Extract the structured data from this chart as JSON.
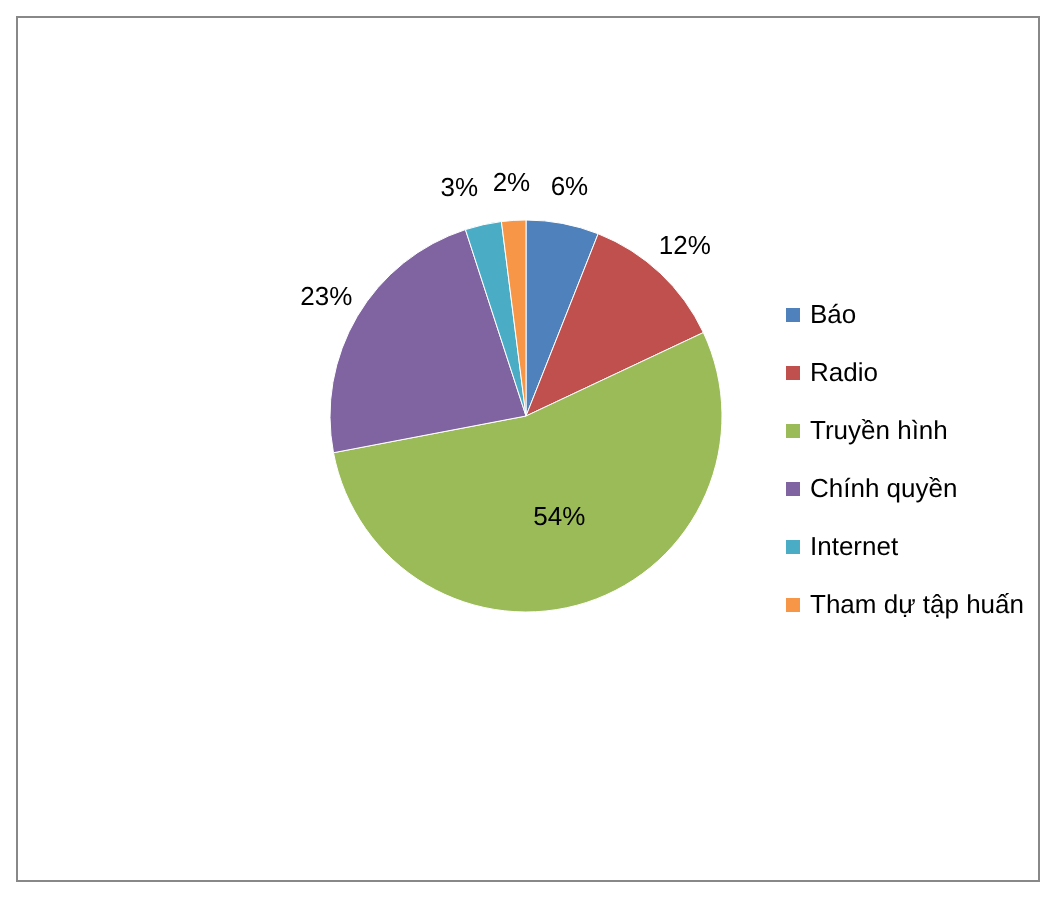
{
  "chart_data": {
    "type": "pie",
    "categories": [
      "Báo",
      "Radio",
      "Truyền hình",
      "Chính quyền",
      "Internet",
      "Tham dự tập huấn"
    ],
    "values": [
      6,
      12,
      54,
      23,
      3,
      2
    ],
    "colors": [
      "#4f81bd",
      "#c0504d",
      "#9bbb59",
      "#8064a2",
      "#4bacc6",
      "#f79646"
    ],
    "value_labels": [
      "6%",
      "12%",
      "54%",
      "23%",
      "3%",
      "2%"
    ],
    "legend": "right"
  }
}
